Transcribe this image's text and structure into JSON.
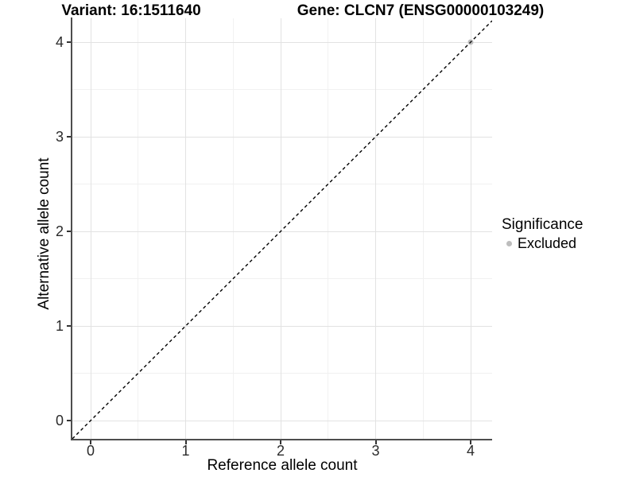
{
  "chart_data": {
    "type": "scatter",
    "title_left": "Variant: 16:1511640",
    "title_right": "Gene: CLCN7 (ENSG00000103249)",
    "xlabel": "Reference allele count",
    "ylabel": "Alternative allele count",
    "xlim": [
      -0.19,
      4.23
    ],
    "ylim": [
      -0.19,
      4.23
    ],
    "xticks": [
      0,
      1,
      2,
      3,
      4
    ],
    "xtick_labels": [
      "0",
      "1",
      "2",
      "3",
      "4"
    ],
    "yticks": [
      0,
      1,
      2,
      3,
      4
    ],
    "ytick_labels": [
      "0",
      "1",
      "2",
      "3",
      "4"
    ],
    "minor_ticks": [
      0.5,
      1.5,
      2.5,
      3.5
    ],
    "grid": "major+minor on white background",
    "reference_line": {
      "slope": 1,
      "intercept": 0,
      "style": "dashed",
      "color": "#000000"
    },
    "series": [
      {
        "name": "Excluded",
        "color": "#bdbdbd",
        "points": [
          [
            4,
            4
          ]
        ]
      }
    ],
    "legend": {
      "position": "right",
      "title": "Significance",
      "items": [
        {
          "label": "Excluded",
          "color": "#bdbdbd"
        }
      ]
    }
  }
}
